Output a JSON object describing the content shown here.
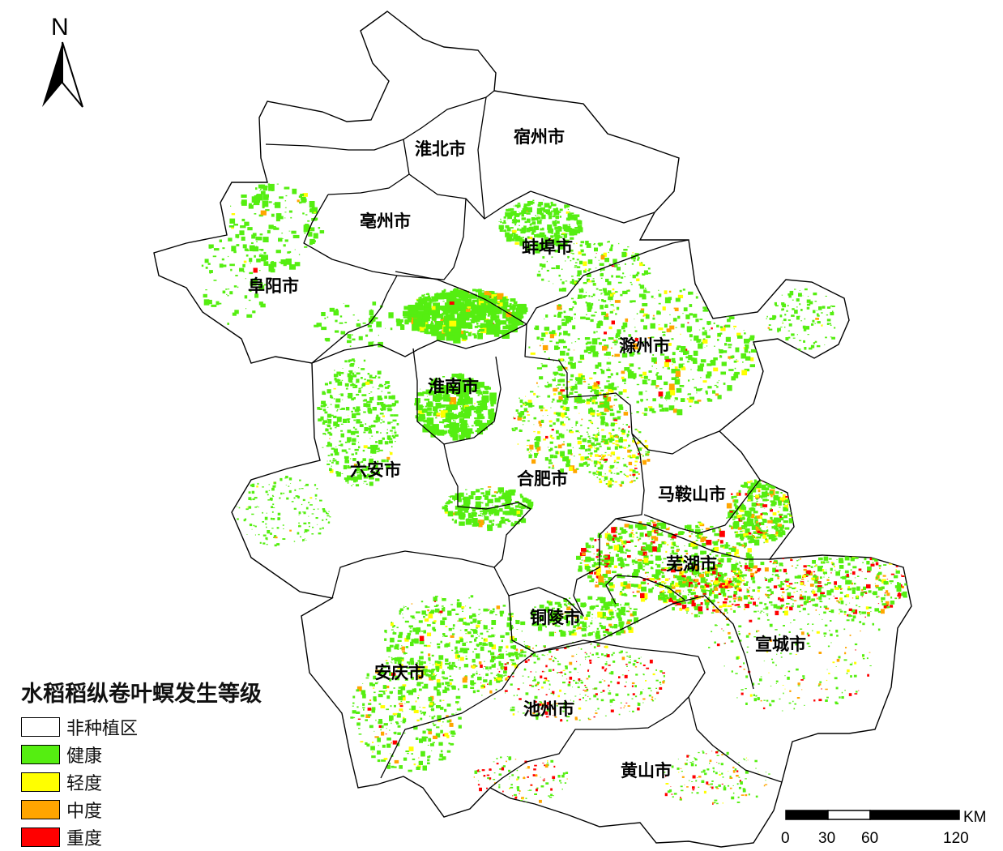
{
  "north_arrow": {
    "letter": "N"
  },
  "cities": [
    {
      "id": "huaibei",
      "name": "淮北市"
    },
    {
      "id": "suzhou",
      "name": "宿州市"
    },
    {
      "id": "bozhou",
      "name": "亳州市"
    },
    {
      "id": "bengbu",
      "name": "蚌埠市"
    },
    {
      "id": "fuyang",
      "name": "阜阳市"
    },
    {
      "id": "chuzhou",
      "name": "滁州市"
    },
    {
      "id": "huainan",
      "name": "淮南市"
    },
    {
      "id": "luan",
      "name": "六安市"
    },
    {
      "id": "hefei",
      "name": "合肥市"
    },
    {
      "id": "maanshan",
      "name": "马鞍山市"
    },
    {
      "id": "wuhu",
      "name": "芜湖市"
    },
    {
      "id": "tongling",
      "name": "铜陵市"
    },
    {
      "id": "xuancheng",
      "name": "宣城市"
    },
    {
      "id": "anqing",
      "name": "安庆市"
    },
    {
      "id": "chizhou",
      "name": "池州市"
    },
    {
      "id": "huangshan",
      "name": "黄山市"
    }
  ],
  "legend": {
    "title": "水稻稻纵卷叶螟发生等级",
    "items": [
      {
        "label": "非种植区",
        "color": "#ffffff"
      },
      {
        "label": "健康",
        "color": "#55ee11"
      },
      {
        "label": "轻度",
        "color": "#ffff00"
      },
      {
        "label": "中度",
        "color": "#ffa500"
      },
      {
        "label": "重度",
        "color": "#ff0000"
      }
    ]
  },
  "scale_bar": {
    "unit": "KM",
    "ticks": [
      "0",
      "30",
      "60",
      "120"
    ]
  },
  "colors": {
    "healthy": "#55ee11",
    "mild": "#ffff00",
    "moderate": "#ffa500",
    "severe": "#ff0000",
    "boundary": "#000000"
  }
}
